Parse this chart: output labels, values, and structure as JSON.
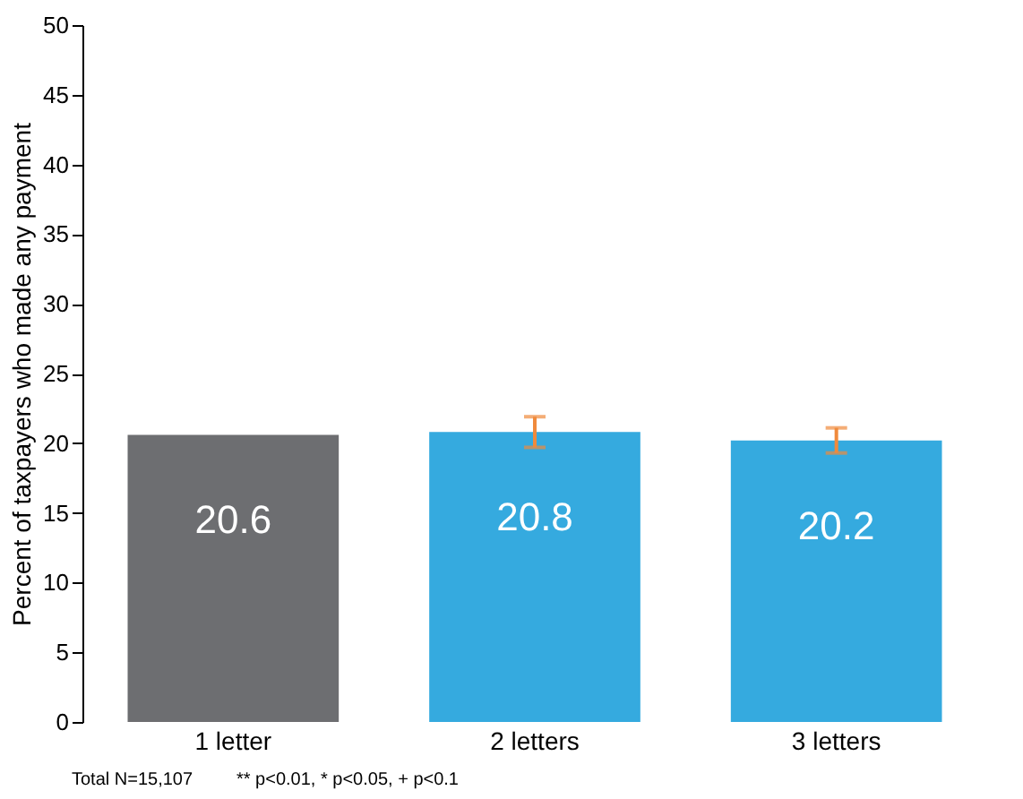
{
  "chart_data": {
    "type": "bar",
    "ylabel": "Percent of taxpayers who made any payment",
    "categories": [
      "1 letter",
      "2 letters",
      "3 letters"
    ],
    "values": [
      20.6,
      20.8,
      20.2
    ],
    "colors": [
      "#6d6e71",
      "#35aadf",
      "#35aadf"
    ],
    "errors": [
      null,
      1.1,
      0.9
    ],
    "ylim": [
      0,
      50
    ],
    "yticks": [
      0,
      5,
      10,
      15,
      20,
      25,
      30,
      35,
      40,
      45,
      50
    ],
    "data_labels": true,
    "grid": false,
    "annotations": [
      "Total N=15,107",
      "** p<0.01, * p<0.05, + p<0.1"
    ]
  }
}
